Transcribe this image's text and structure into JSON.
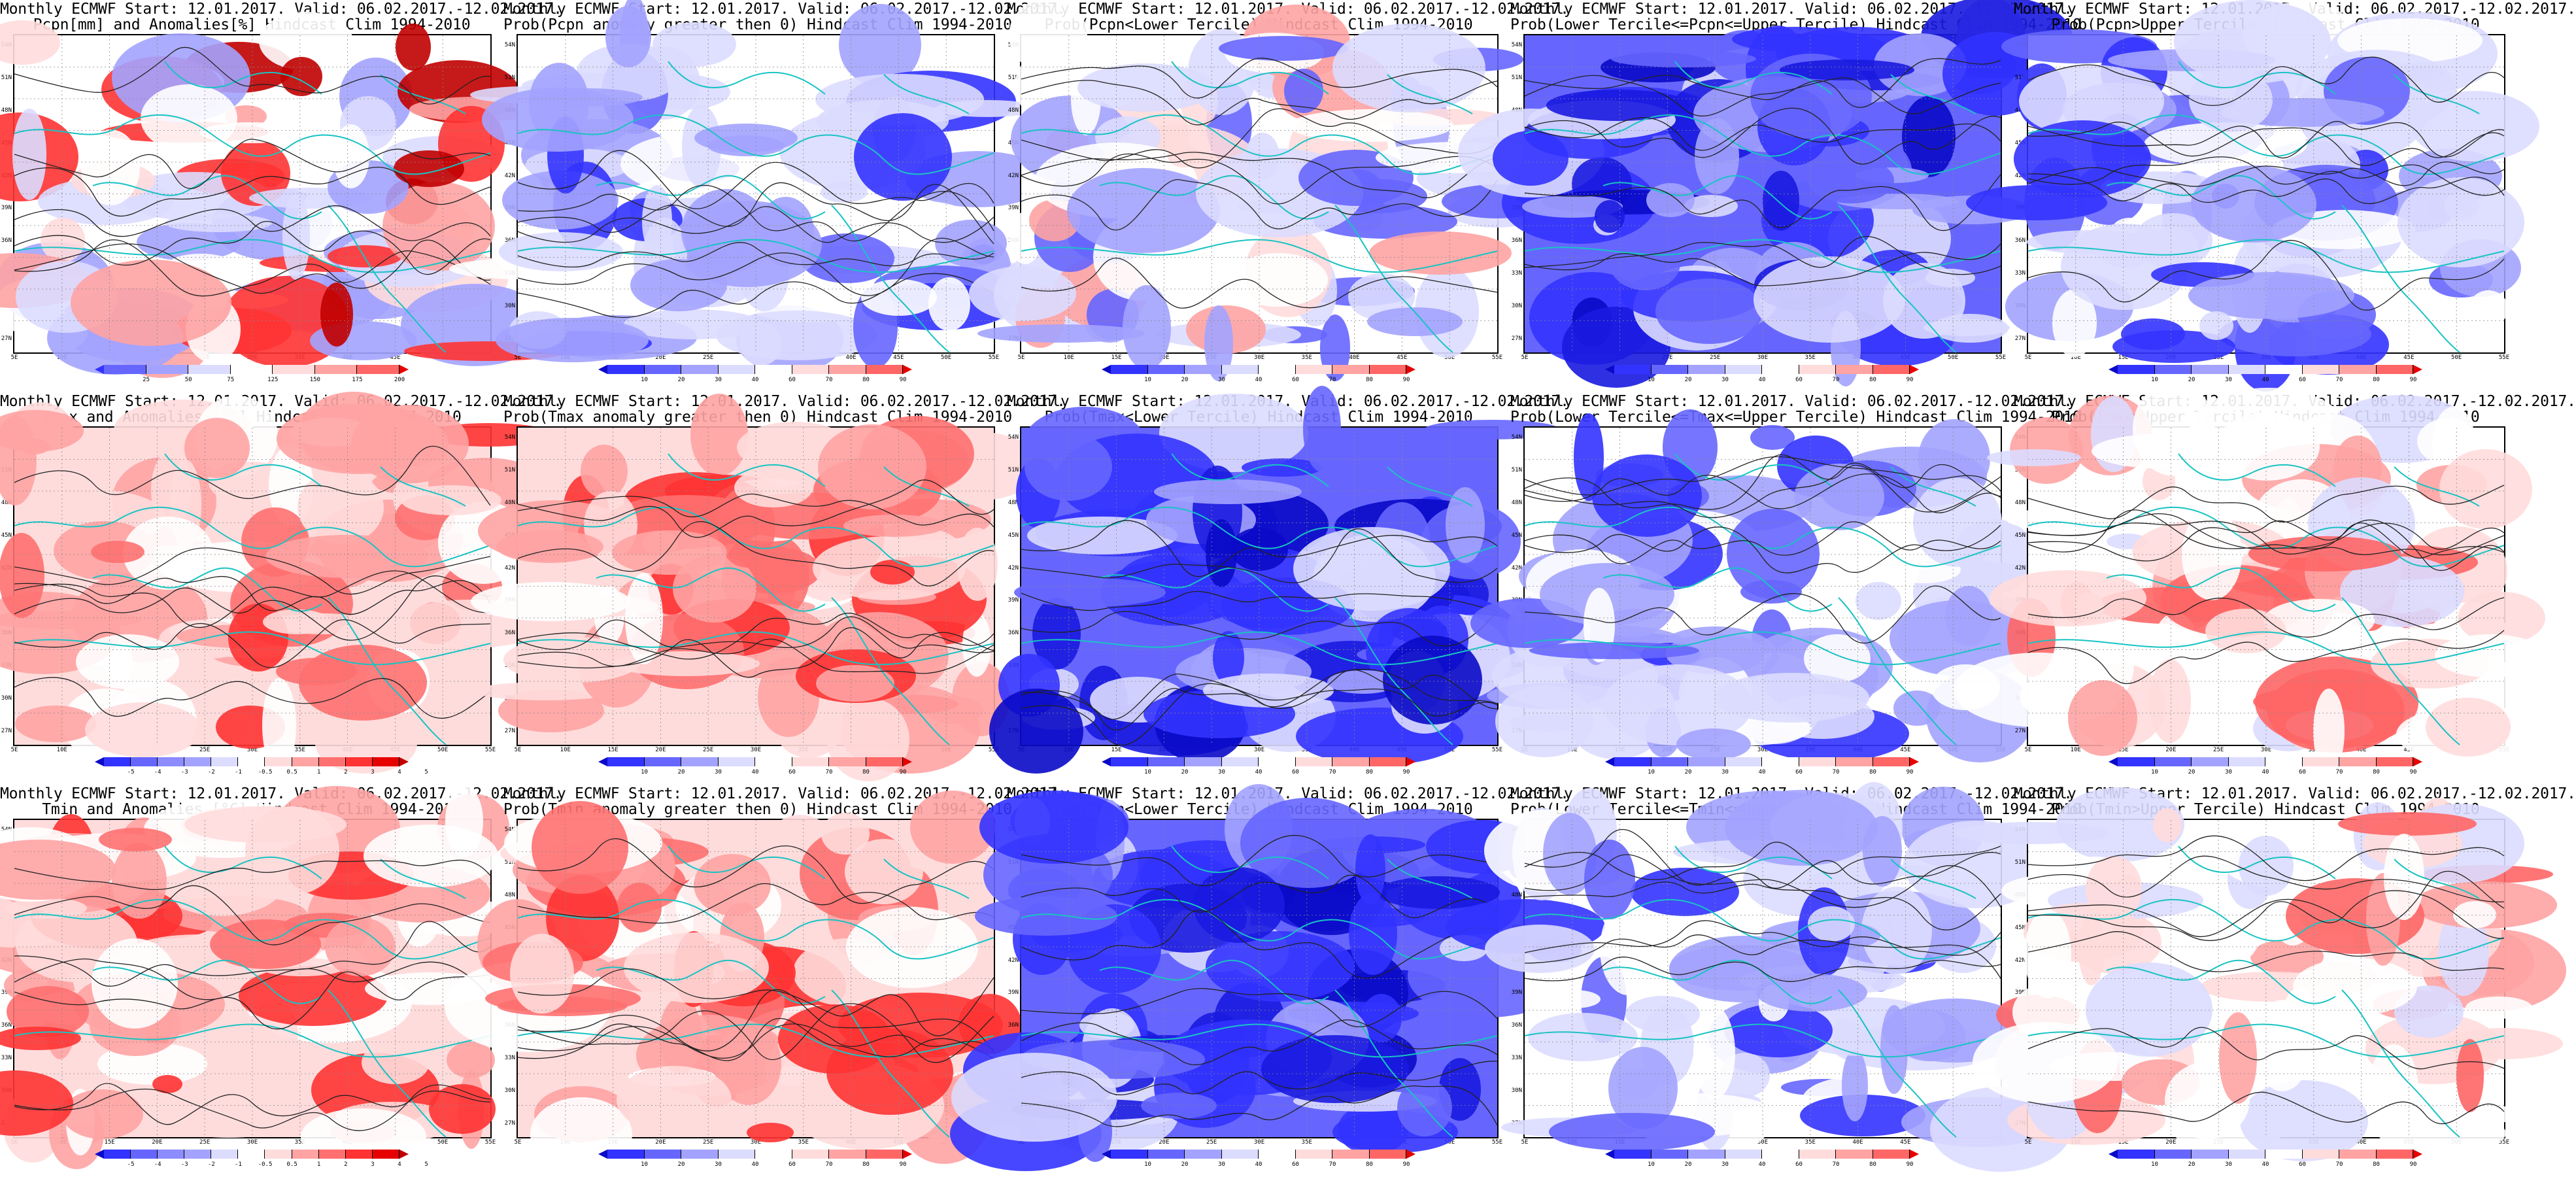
{
  "panels": [
    {
      "row": 0,
      "col": 0,
      "title1": "Monthly ECMWF Start: 12.01.2017. Valid: 06.02.2017.-12.02.2017.",
      "title2": "Pcpn[mm] and Anomalies[%] Hindcast Clim 1994-2010",
      "scheme": "pcpn",
      "legend": "pcpn"
    },
    {
      "row": 0,
      "col": 1,
      "title1": "Monthly ECMWF Start: 12.01.2017. Valid: 06.02.2017.-12.02.2017.",
      "title2": "Prob(Pcpn anomaly greater then 0) Hindcast Clim 1994-2010",
      "scheme": "blue_mix",
      "legend": "prob"
    },
    {
      "row": 0,
      "col": 2,
      "title1": "Monthly ECMWF Start: 12.01.2017. Valid: 06.02.2017.-12.02.2017.",
      "title2": "Prob(Pcpn<Lower Tercile) Hindcast Clim 1994-2010",
      "scheme": "blue_light_red",
      "legend": "prob"
    },
    {
      "row": 0,
      "col": 3,
      "title1": "Monthly ECMWF Start: 12.01.2017. Valid: 06.02.2017.-12.02.2017.",
      "title2": "Prob(Lower Tercile<=Pcpn<=Upper Tercile) Hindcast Clim 1994-2010",
      "scheme": "blue_deep",
      "legend": "prob"
    },
    {
      "row": 0,
      "col": 4,
      "title1": "Monthly ECMWF Start: 12.01.2017. Valid: 06.02.2017.-12.02.2017.",
      "title2": "Prob(Pcpn>Upper Tercile) Hindcast Clim 1994-2010",
      "scheme": "blue_mix",
      "legend": "prob"
    },
    {
      "row": 1,
      "col": 0,
      "title1": "Monthly ECMWF Start: 12.01.2017. Valid: 06.02.2017.-12.02.2017.",
      "title2": "Tmax and Anomalies [°C] Hindcast Clim 1994-2010",
      "scheme": "red_warm",
      "legend": "anom"
    },
    {
      "row": 1,
      "col": 1,
      "title1": "Monthly ECMWF Start: 12.01.2017. Valid: 06.02.2017.-12.02.2017.",
      "title2": "Prob(Tmax anomaly greater then 0) Hindcast Clim 1994-2010",
      "scheme": "red_warm",
      "legend": "prob"
    },
    {
      "row": 1,
      "col": 2,
      "title1": "Monthly ECMWF Start: 12.01.2017. Valid: 06.02.2017.-12.02.2017.",
      "title2": "Prob(Tmax<Lower Tercile) Hindcast Clim 1994-2010",
      "scheme": "blue_deep",
      "legend": "prob"
    },
    {
      "row": 1,
      "col": 3,
      "title1": "Monthly ECMWF Start: 12.01.2017. Valid: 06.02.2017.-12.02.2017.",
      "title2": "Prob(Lower Tercile<=Tmax<=Upper Tercile) Hindcast Clim 1994-2010",
      "scheme": "blue_mix",
      "legend": "prob"
    },
    {
      "row": 1,
      "col": 4,
      "title1": "Monthly ECMWF Start: 12.01.2017. Valid: 06.02.2017.-12.02.2017.",
      "title2": "Prob(Tmax>Upper Tercile) Hindcast Clim 1994-2010",
      "scheme": "red_light",
      "legend": "prob"
    },
    {
      "row": 2,
      "col": 0,
      "title1": "Monthly ECMWF Start: 12.01.2017. Valid: 06.02.2017.-12.02.2017.",
      "title2": "Tmin and Anomalies [°C] Hindcast Clim 1994-2010",
      "scheme": "red_warm",
      "legend": "anom"
    },
    {
      "row": 2,
      "col": 1,
      "title1": "Monthly ECMWF Start: 12.01.2017. Valid: 06.02.2017.-12.02.2017.",
      "title2": "Prob(Tmin anomaly greater then 0) Hindcast Clim 1994-2010",
      "scheme": "red_warm",
      "legend": "prob"
    },
    {
      "row": 2,
      "col": 2,
      "title1": "Monthly ECMWF Start: 12.01.2017. Valid: 06.02.2017.-12.02.2017.",
      "title2": "Prob(Tmin<Lower Tercile) Hindcast Clim 1994-2010",
      "scheme": "blue_deep",
      "legend": "prob"
    },
    {
      "row": 2,
      "col": 3,
      "title1": "Monthly ECMWF Start: 12.01.2017. Valid: 06.02.2017.-12.02.2017.",
      "title2": "Prob(Lower Tercile<=Tmin<=Upper Tercile) Hindcast Clim 1994-2010",
      "scheme": "blue_mix",
      "legend": "prob"
    },
    {
      "row": 2,
      "col": 4,
      "title1": "Monthly ECMWF Start: 12.01.2017. Valid: 06.02.2017.-12.02.2017.",
      "title2": "Prob(Tmin>Upper Tercile) Hindcast Clim 1994-2010",
      "scheme": "red_light",
      "legend": "prob"
    }
  ],
  "axes": {
    "lat_labels": [
      "54N",
      "51N",
      "48N",
      "45N",
      "42N",
      "39N",
      "36N",
      "33N",
      "30N",
      "27N"
    ],
    "lon_labels": [
      "5E",
      "10E",
      "15E",
      "20E",
      "25E",
      "30E",
      "35E",
      "40E",
      "45E",
      "50E",
      "55E"
    ]
  },
  "legends": {
    "pcpn": {
      "ticks": [
        "25",
        "50",
        "75",
        "125",
        "150",
        "175",
        "200"
      ],
      "colors": [
        "#3333ff",
        "#6666ff",
        "#a3a3ff",
        "#dcdcff",
        "#ffffff",
        "#ffdcdc",
        "#ffa3a3",
        "#ff6666",
        "#e60000"
      ]
    },
    "prob": {
      "ticks": [
        "10",
        "20",
        "30",
        "40",
        "60",
        "70",
        "80",
        "90"
      ],
      "colors": [
        "#0a0ac8",
        "#3333ff",
        "#6666ff",
        "#a3a3ff",
        "#dcdcff",
        "#ffffff",
        "#ffdcdc",
        "#ffa3a3",
        "#ff6666",
        "#e60000"
      ]
    },
    "anom": {
      "ticks": [
        "-5",
        "-4",
        "-3",
        "-2",
        "-1",
        "-0.5",
        "0.5",
        "1",
        "2",
        "3",
        "4",
        "5"
      ],
      "colors": [
        "#0a0ac8",
        "#3333ff",
        "#6666ff",
        "#8c8cff",
        "#a3a3ff",
        "#dcdcff",
        "#ffffff",
        "#ffdcdc",
        "#ffa3a3",
        "#ff7070",
        "#ff3333",
        "#e60000",
        "#c00000"
      ]
    }
  },
  "schemes": {
    "pcpn": [
      "#ffffff",
      "#ffffff",
      "#dcdcff",
      "#a3a3ff",
      "#ffdcdc",
      "#ffa3a3",
      "#ff3333",
      "#c00000"
    ],
    "blue_mix": [
      "#ffffff",
      "#dcdcff",
      "#a3a3ff",
      "#6666ff",
      "#dcdcff",
      "#ffffff",
      "#3333ff",
      "#a3a3ff"
    ],
    "blue_light_red": [
      "#ffffff",
      "#dcdcff",
      "#a3a3ff",
      "#ffffff",
      "#6666ff",
      "#ffdcdc",
      "#ffa3a3",
      "#dcdcff"
    ],
    "blue_deep": [
      "#6666ff",
      "#3333ff",
      "#a3a3ff",
      "#1a1ae0",
      "#6666ff",
      "#0a0ac8",
      "#3333ff",
      "#dcdcff"
    ],
    "red_warm": [
      "#ffdcdc",
      "#ffa3a3",
      "#ffffff",
      "#ff7070",
      "#ffdcdc",
      "#ffa3a3",
      "#ff3333",
      "#ffdcdc"
    ],
    "red_light": [
      "#ffffff",
      "#ffffff",
      "#ffdcdc",
      "#dcdcff",
      "#ffffff",
      "#ffa3a3",
      "#ffdcdc",
      "#ff6666"
    ]
  }
}
